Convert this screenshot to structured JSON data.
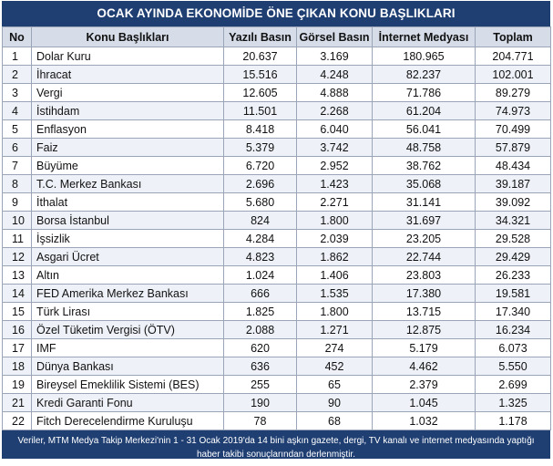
{
  "title": "OCAK AYINDA EKONOMİDE ÖNE ÇIKAN KONU BAŞLIKLARI",
  "columns": [
    "No",
    "Konu Başlıkları",
    "Yazılı Basın",
    "Görsel Basın",
    "İnternet Medyası",
    "Toplam"
  ],
  "rows": [
    [
      "1",
      "Dolar Kuru",
      "20.637",
      "3.169",
      "180.965",
      "204.771"
    ],
    [
      "2",
      "İhracat",
      "15.516",
      "4.248",
      "82.237",
      "102.001"
    ],
    [
      "3",
      "Vergi",
      "12.605",
      "4.888",
      "71.786",
      "89.279"
    ],
    [
      "4",
      "İstihdam",
      "11.501",
      "2.268",
      "61.204",
      "74.973"
    ],
    [
      "5",
      "Enflasyon",
      "8.418",
      "6.040",
      "56.041",
      "70.499"
    ],
    [
      "6",
      "Faiz",
      "5.379",
      "3.742",
      "48.758",
      "57.879"
    ],
    [
      "7",
      "Büyüme",
      "6.720",
      "2.952",
      "38.762",
      "48.434"
    ],
    [
      "8",
      "T.C. Merkez Bankası",
      "2.696",
      "1.423",
      "35.068",
      "39.187"
    ],
    [
      "9",
      "İthalat",
      "5.680",
      "2.271",
      "31.141",
      "39.092"
    ],
    [
      "10",
      "Borsa İstanbul",
      "824",
      "1.800",
      "31.697",
      "34.321"
    ],
    [
      "11",
      "İşsizlik",
      "4.284",
      "2.039",
      "23.205",
      "29.528"
    ],
    [
      "12",
      "Asgari Ücret",
      "4.823",
      "1.862",
      "22.744",
      "29.429"
    ],
    [
      "13",
      "Altın",
      "1.024",
      "1.406",
      "23.803",
      "26.233"
    ],
    [
      "14",
      "FED Amerika Merkez Bankası",
      "666",
      "1.535",
      "17.380",
      "19.581"
    ],
    [
      "15",
      "Türk Lirası",
      "1.825",
      "1.800",
      "13.715",
      "17.340"
    ],
    [
      "16",
      "Özel Tüketim Vergisi (ÖTV)",
      "2.088",
      "1.271",
      "12.875",
      "16.234"
    ],
    [
      "17",
      "IMF",
      "620",
      "274",
      "5.179",
      "6.073"
    ],
    [
      "18",
      "Dünya Bankası",
      "636",
      "452",
      "4.462",
      "5.550"
    ],
    [
      "19",
      "Bireysel Emeklilik Sistemi (BES)",
      "255",
      "65",
      "2.379",
      "2.699"
    ],
    [
      "21",
      "Kredi Garanti Fonu",
      "190",
      "90",
      "1.045",
      "1.325"
    ],
    [
      "22",
      "Fitch Derecelendirme Kuruluşu",
      "78",
      "68",
      "1.032",
      "1.178"
    ]
  ],
  "footer": "Veriler, MTM Medya Takip Merkezi'nin 1 - 31 Ocak 2019'da 14 bini aşkın gazete, dergi, TV kanalı ve internet medyasında yaptığı haber takibi sonuçlarından derlenmiştir.",
  "colors": {
    "header_bg": "#1f3f73",
    "column_header_bg": "#d6dde9",
    "row_alt_bg": "#eef2f8"
  }
}
